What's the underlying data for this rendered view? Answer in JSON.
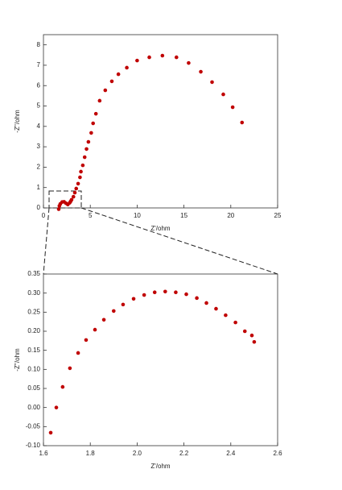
{
  "chart_data": [
    {
      "type": "scatter",
      "x_label": "Z'/ohm",
      "y_label": "-Z''/ohm",
      "xlim": [
        0,
        25
      ],
      "xticks": [
        0,
        5,
        10,
        15,
        20,
        25
      ],
      "ylim": [
        0,
        8.5
      ],
      "yticks": [
        0,
        1,
        2,
        3,
        4,
        5,
        6,
        7,
        8
      ],
      "series": [
        {
          "color": "#c00000",
          "x": [
            1.63,
            1.7,
            1.8,
            2.0,
            2.2,
            2.4,
            2.6,
            2.8,
            2.9,
            3.0,
            3.2,
            3.35,
            3.5,
            3.7,
            3.9,
            4.0,
            4.2,
            4.4,
            4.6,
            4.8,
            5.1,
            5.3,
            5.6,
            6.0,
            6.6,
            7.3,
            8.0,
            8.9,
            10.0,
            11.3,
            12.7,
            14.2,
            15.5,
            16.8,
            18.0,
            19.2,
            20.2,
            21.2
          ],
          "values": [
            -0.06,
            0.1,
            0.2,
            0.29,
            0.3,
            0.23,
            0.17,
            0.25,
            0.32,
            0.4,
            0.55,
            0.75,
            0.95,
            1.19,
            1.5,
            1.78,
            2.09,
            2.49,
            2.89,
            3.24,
            3.68,
            4.15,
            4.62,
            5.26,
            5.77,
            6.21,
            6.56,
            6.88,
            7.23,
            7.39,
            7.47,
            7.39,
            7.11,
            6.68,
            6.17,
            5.57,
            4.94,
            4.19
          ]
        }
      ]
    },
    {
      "type": "scatter",
      "x_label": "Z'/ohm",
      "y_label": "-Z''/ohm",
      "xlim": [
        1.6,
        2.6
      ],
      "xticks": [
        1.6,
        1.8,
        {
          "value": 2,
          "label": "2.0"
        },
        2.2,
        2.4,
        2.6
      ],
      "ylim": [
        -0.1,
        0.35
      ],
      "yticks": [
        {
          "value": -0.1,
          "label": "-0.10"
        },
        -0.05,
        {
          "value": 0,
          "label": "0.00"
        },
        0.05,
        {
          "value": 0.1,
          "label": "0.10"
        },
        0.15,
        {
          "value": 0.2,
          "label": "0.20"
        },
        0.25,
        {
          "value": 0.3,
          "label": "0.30"
        },
        0.35
      ],
      "series": [
        {
          "color": "#c00000",
          "x": [
            1.631,
            1.655,
            1.682,
            1.713,
            1.748,
            1.782,
            1.82,
            1.858,
            1.9,
            1.94,
            1.985,
            2.03,
            2.075,
            2.12,
            2.165,
            2.21,
            2.255,
            2.296,
            2.337,
            2.378,
            2.42,
            2.46,
            2.49,
            2.5
          ],
          "values": [
            -0.066,
            0.0,
            0.054,
            0.103,
            0.143,
            0.177,
            0.204,
            0.23,
            0.253,
            0.27,
            0.285,
            0.295,
            0.302,
            0.304,
            0.302,
            0.297,
            0.287,
            0.274,
            0.259,
            0.242,
            0.223,
            0.2,
            0.189,
            0.172
          ]
        }
      ]
    }
  ]
}
